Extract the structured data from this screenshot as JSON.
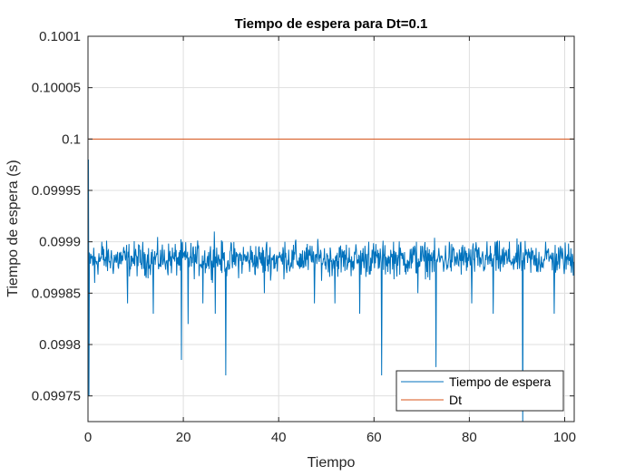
{
  "chart_data": {
    "type": "line",
    "title": "Tiempo de espera para Dt=0.1",
    "xlabel": "Tiempo",
    "ylabel": "Tiempo de espera (s)",
    "xlim": [
      0,
      102
    ],
    "ylim": [
      0.099725,
      0.1001
    ],
    "xticks": [
      0,
      20,
      40,
      60,
      80,
      100
    ],
    "xtick_labels": [
      "0",
      "20",
      "40",
      "60",
      "80",
      "100"
    ],
    "yticks": [
      0.09975,
      0.0998,
      0.09985,
      0.0999,
      0.09995,
      0.1,
      0.10005,
      0.1001
    ],
    "ytick_labels": [
      "0.09975",
      "0.0998",
      "0.09985",
      "0.0999",
      "0.09995",
      "0.1",
      "0.10005",
      "0.1001"
    ],
    "grid": true,
    "legend_location": "bottom-right",
    "series": [
      {
        "name": "Tiempo de espera",
        "color": "#0072BD",
        "noise": {
          "start": 0,
          "end": 102,
          "step": 0.1,
          "mean": 0.099883,
          "amplitude": 2.2e-05
        },
        "spikes": [
          {
            "x": 0.1,
            "y": 0.09998
          },
          {
            "x": 0.2,
            "y": 0.09975
          },
          {
            "x": 1.4,
            "y": 0.09986
          },
          {
            "x": 8.3,
            "y": 0.09984
          },
          {
            "x": 13.7,
            "y": 0.09983
          },
          {
            "x": 19.6,
            "y": 0.099785
          },
          {
            "x": 21.0,
            "y": 0.09982
          },
          {
            "x": 24.1,
            "y": 0.09984
          },
          {
            "x": 26.7,
            "y": 0.09983
          },
          {
            "x": 28.9,
            "y": 0.09977
          },
          {
            "x": 37.0,
            "y": 0.09985
          },
          {
            "x": 47.5,
            "y": 0.09984
          },
          {
            "x": 51.8,
            "y": 0.09984
          },
          {
            "x": 57.0,
            "y": 0.09983
          },
          {
            "x": 61.6,
            "y": 0.09977
          },
          {
            "x": 69.2,
            "y": 0.09985
          },
          {
            "x": 73.0,
            "y": 0.099778
          },
          {
            "x": 80.5,
            "y": 0.09984
          },
          {
            "x": 85.0,
            "y": 0.09983
          },
          {
            "x": 91.2,
            "y": 0.09972
          },
          {
            "x": 97.8,
            "y": 0.09983
          }
        ],
        "peaks": [
          {
            "x": 2.9,
            "y": 0.0999
          },
          {
            "x": 19.8,
            "y": 0.0999
          },
          {
            "x": 26.5,
            "y": 0.09991
          },
          {
            "x": 37.5,
            "y": 0.0999
          },
          {
            "x": 41.3,
            "y": 0.0999
          },
          {
            "x": 43.5,
            "y": 0.0999
          },
          {
            "x": 58.9,
            "y": 0.0999
          },
          {
            "x": 64.1,
            "y": 0.0999
          },
          {
            "x": 68.9,
            "y": 0.0999
          },
          {
            "x": 75.8,
            "y": 0.0999
          },
          {
            "x": 85.4,
            "y": 0.0999
          },
          {
            "x": 96.0,
            "y": 0.0999
          }
        ]
      },
      {
        "name": "Dt",
        "color": "#D95319",
        "x": [
          0,
          102
        ],
        "y": [
          0.1,
          0.1
        ]
      }
    ]
  }
}
